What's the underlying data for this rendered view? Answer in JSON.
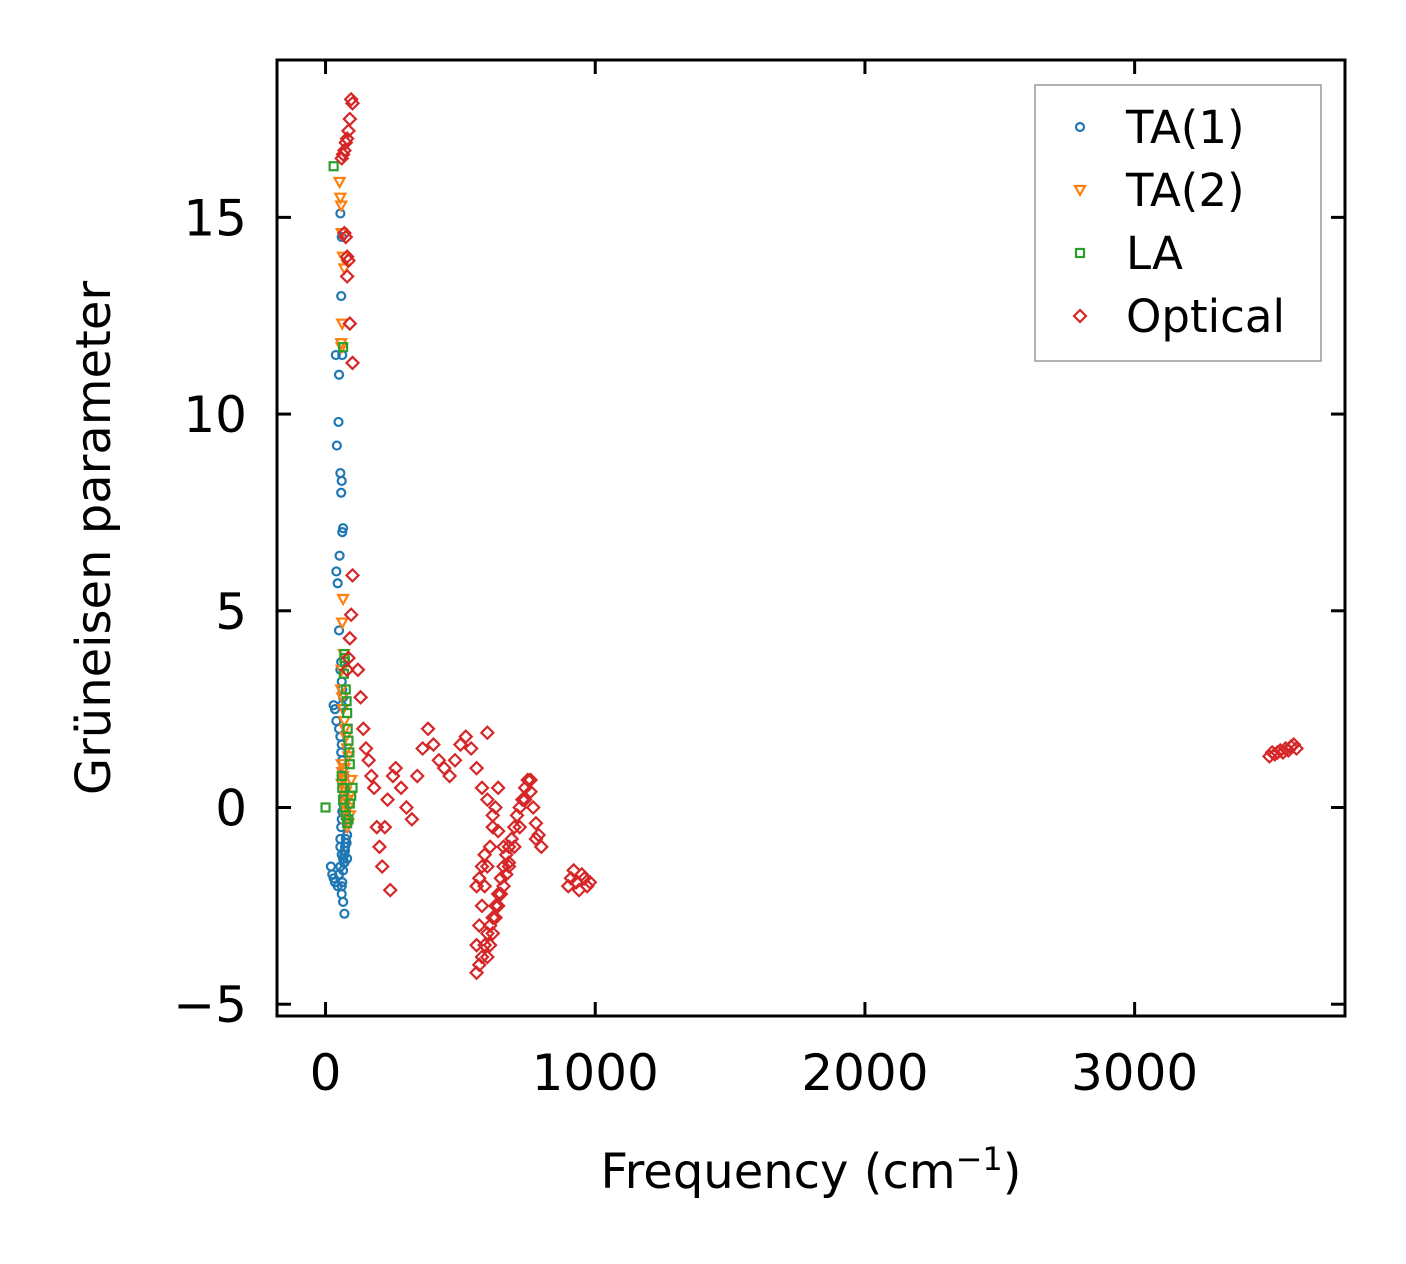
{
  "chart_data": {
    "type": "scatter",
    "title": "",
    "xlabel": "Frequency (cm",
    "xlabel_sup": "−1",
    "xlabel_end": ")",
    "ylabel": "Grüneisen parameter",
    "xlim": [
      -180,
      3780
    ],
    "ylim": [
      -5.3,
      19.0
    ],
    "xticks": [
      0,
      1000,
      2000,
      3000
    ],
    "xtick_labels": [
      "0",
      "1000",
      "2000",
      "3000"
    ],
    "yticks": [
      -5,
      0,
      5,
      10,
      15
    ],
    "ytick_labels": [
      "−5",
      "0",
      "5",
      "10",
      "15"
    ],
    "legend_position": "top-right",
    "series": [
      {
        "name": "TA(1)",
        "marker": "circle",
        "color": "#1f77b4",
        "x": [
          55,
          58,
          60,
          62,
          38,
          50,
          48,
          42,
          55,
          60,
          58,
          65,
          62,
          52,
          40,
          45,
          50,
          58,
          55,
          60,
          62,
          65,
          60,
          30,
          35,
          40,
          50,
          55,
          60,
          58,
          62,
          65,
          70,
          72,
          68,
          65,
          62,
          60,
          58,
          55,
          20,
          25,
          30,
          35,
          45,
          50,
          55,
          60,
          65,
          70,
          55,
          60,
          65,
          70,
          72,
          75,
          80,
          60,
          62,
          65,
          68,
          70,
          72,
          75,
          78,
          80
        ],
        "y": [
          15.1,
          13,
          14.5,
          11.5,
          11.5,
          11.0,
          9.8,
          9.2,
          8.5,
          8.3,
          8.0,
          7.1,
          7.0,
          6.4,
          6.0,
          5.7,
          4.5,
          3.7,
          3.5,
          3.2,
          3.0,
          2.8,
          2.6,
          2.6,
          2.5,
          2.2,
          2.0,
          1.8,
          1.6,
          1.4,
          1.2,
          1.0,
          0.8,
          0.5,
          0.3,
          0.1,
          -0.1,
          -0.3,
          -0.5,
          -0.8,
          -1.5,
          -1.7,
          -1.8,
          -1.9,
          -2.0,
          -1.7,
          -1.5,
          -2.2,
          -2.4,
          -2.7,
          -1.0,
          -1.2,
          -1.3,
          -1.4,
          -1.1,
          -0.9,
          -0.7,
          -2.0,
          -1.9,
          -1.6,
          -1.4,
          -1.2,
          -1.0,
          -0.8,
          -0.9,
          -1.3
        ]
      },
      {
        "name": "TA(2)",
        "marker": "triangle-down",
        "color": "#ff7f0e",
        "x": [
          52,
          55,
          58,
          60,
          65,
          70,
          62,
          60,
          58,
          65,
          62,
          68,
          60,
          58,
          62,
          65,
          70,
          72,
          75,
          80,
          85,
          60,
          62,
          65,
          68,
          70,
          72,
          75,
          78,
          80,
          85,
          90,
          60,
          65,
          70,
          75,
          80,
          85,
          90,
          95
        ],
        "y": [
          15.9,
          15.5,
          15.3,
          14.6,
          14.0,
          13.7,
          12.3,
          11.7,
          11.8,
          5.3,
          4.7,
          3.9,
          3.5,
          3.0,
          2.8,
          2.5,
          2.2,
          2.0,
          1.8,
          1.5,
          1.3,
          1.1,
          0.9,
          0.7,
          0.5,
          0.3,
          0.1,
          -0.1,
          -0.3,
          -0.5,
          -0.4,
          -0.2,
          0.6,
          0.8,
          1.0,
          0.4,
          0.2,
          0.0,
          0.3,
          0.7
        ]
      },
      {
        "name": "LA",
        "marker": "square",
        "color": "#2ca02c",
        "x": [
          30,
          65,
          70,
          0,
          70,
          72,
          68,
          75,
          78,
          80,
          82,
          85,
          88,
          90,
          60,
          62,
          65,
          70,
          75,
          80,
          85,
          90,
          95,
          100
        ],
        "y": [
          16.3,
          11.7,
          3.8,
          0.0,
          3.9,
          3.7,
          3.4,
          3.0,
          2.7,
          2.4,
          2.0,
          1.7,
          1.4,
          1.1,
          0.8,
          0.5,
          0.2,
          0.0,
          -0.2,
          -0.4,
          -0.3,
          0.1,
          0.3,
          0.5
        ]
      },
      {
        "name": "Optical",
        "marker": "diamond",
        "color": "#d62728",
        "x": [
          95,
          100,
          90,
          85,
          80,
          75,
          70,
          65,
          60,
          70,
          75,
          80,
          85,
          80,
          90,
          100,
          100,
          95,
          90,
          85,
          80,
          240,
          120,
          130,
          140,
          150,
          160,
          170,
          180,
          190,
          200,
          210,
          220,
          230,
          250,
          260,
          280,
          300,
          320,
          340,
          360,
          380,
          400,
          420,
          440,
          460,
          480,
          500,
          520,
          540,
          560,
          580,
          600,
          620,
          640,
          660,
          680,
          700,
          720,
          740,
          760,
          780,
          560,
          570,
          580,
          590,
          600,
          610,
          620,
          630,
          640,
          650,
          660,
          670,
          680,
          690,
          700,
          710,
          720,
          730,
          740,
          750,
          760,
          770,
          780,
          790,
          800,
          560,
          570,
          580,
          590,
          600,
          610,
          620,
          630,
          640,
          560,
          570,
          580,
          590,
          600,
          610,
          620,
          630,
          640,
          650,
          660,
          670,
          680,
          900,
          910,
          920,
          930,
          940,
          950,
          960,
          970,
          980,
          3500,
          3510,
          3520,
          3530,
          3540,
          3550,
          3560,
          3570,
          3580,
          3590,
          3600,
          600
        ],
        "y": [
          18.0,
          17.9,
          17.5,
          17.2,
          17.0,
          16.9,
          16.7,
          16.6,
          16.5,
          14.6,
          14.5,
          14.0,
          13.9,
          13.5,
          12.3,
          11.3,
          5.9,
          4.9,
          4.3,
          3.8,
          3.5,
          -2.1,
          3.5,
          2.8,
          2.0,
          1.5,
          1.2,
          0.8,
          0.5,
          -0.5,
          -1.0,
          -1.5,
          -0.5,
          0.2,
          0.8,
          1.0,
          0.5,
          0.0,
          -0.3,
          0.8,
          1.5,
          2.0,
          1.6,
          1.2,
          1.0,
          0.8,
          1.2,
          1.6,
          1.8,
          1.5,
          1.0,
          0.5,
          0.2,
          -0.2,
          -0.6,
          -1.0,
          -1.5,
          -1.0,
          -0.5,
          0.2,
          0.7,
          -0.8,
          -4.2,
          -4.0,
          -3.8,
          -3.5,
          -3.2,
          -3.0,
          -2.8,
          -2.5,
          -2.2,
          -1.8,
          -1.5,
          -1.2,
          -1.0,
          -0.8,
          -0.5,
          -0.2,
          0.0,
          0.2,
          0.5,
          0.7,
          0.4,
          0.0,
          -0.4,
          -0.7,
          -1.0,
          -3.5,
          -3.0,
          -2.5,
          -2.0,
          -1.5,
          -1.0,
          -0.5,
          0.0,
          0.5,
          -2.0,
          -1.8,
          -1.5,
          -1.2,
          -3.8,
          -3.5,
          -3.2,
          -2.8,
          -2.5,
          -2.2,
          -2.0,
          -1.7,
          -1.4,
          -2.0,
          -1.8,
          -1.6,
          -1.9,
          -2.1,
          -1.7,
          -1.8,
          -2.0,
          -1.9,
          1.3,
          1.4,
          1.35,
          1.4,
          1.45,
          1.4,
          1.5,
          1.45,
          1.55,
          1.6,
          1.5,
          1.9
        ]
      }
    ]
  }
}
